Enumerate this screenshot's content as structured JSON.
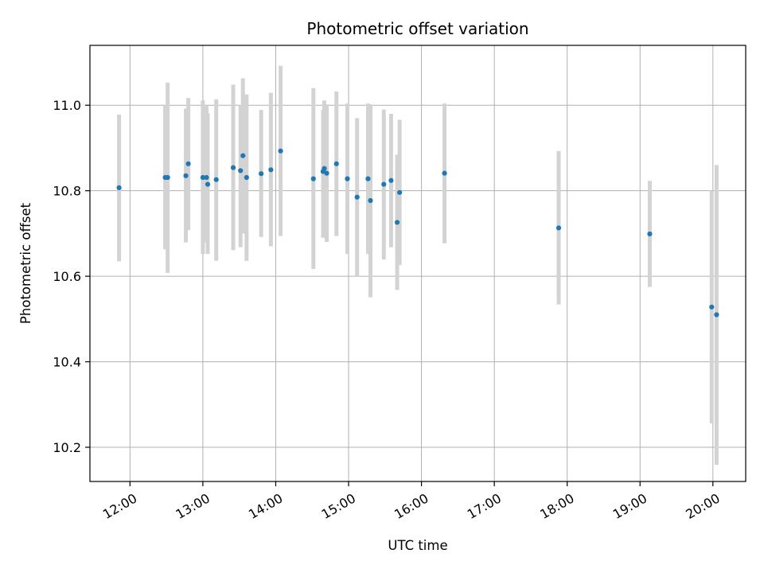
{
  "chart_data": {
    "type": "scatter",
    "title": "Photometric offset variation",
    "xlabel": "UTC time",
    "ylabel": "Photometric offset",
    "x_axis_kind": "time_of_day",
    "x_range": [
      "11:27",
      "20:27"
    ],
    "ylim": [
      10.12,
      11.14
    ],
    "x_ticks": [
      "12:00",
      "13:00",
      "14:00",
      "15:00",
      "16:00",
      "17:00",
      "18:00",
      "19:00",
      "20:00"
    ],
    "y_ticks": [
      10.2,
      10.4,
      10.6,
      10.8,
      11.0
    ],
    "y_tick_labels": [
      "10.2",
      "10.4",
      "10.6",
      "10.8",
      "11.0"
    ],
    "grid": true,
    "point_color": "#1f77b4",
    "errorbar_color": "#d3d3d3",
    "points": [
      {
        "x": "11:51",
        "y": 10.807,
        "ylow": 10.635,
        "yhigh": 10.978
      },
      {
        "x": "12:29",
        "y": 10.831,
        "ylow": 10.663,
        "yhigh": 11.0
      },
      {
        "x": "12:31",
        "y": 10.831,
        "ylow": 10.608,
        "yhigh": 11.053
      },
      {
        "x": "12:46",
        "y": 10.835,
        "ylow": 10.679,
        "yhigh": 10.992
      },
      {
        "x": "12:48",
        "y": 10.863,
        "ylow": 10.708,
        "yhigh": 11.017
      },
      {
        "x": "13:00",
        "y": 10.831,
        "ylow": 10.652,
        "yhigh": 11.011
      },
      {
        "x": "13:03",
        "y": 10.831,
        "ylow": 10.679,
        "yhigh": 11.0
      },
      {
        "x": "13:04",
        "y": 10.815,
        "ylow": 10.652,
        "yhigh": 10.981
      },
      {
        "x": "13:11",
        "y": 10.826,
        "ylow": 10.636,
        "yhigh": 11.014
      },
      {
        "x": "13:25",
        "y": 10.854,
        "ylow": 10.661,
        "yhigh": 11.048
      },
      {
        "x": "13:31",
        "y": 10.847,
        "ylow": 10.668,
        "yhigh": 11.0
      },
      {
        "x": "13:33",
        "y": 10.882,
        "ylow": 10.7,
        "yhigh": 11.063
      },
      {
        "x": "13:36",
        "y": 10.831,
        "ylow": 10.636,
        "yhigh": 11.025
      },
      {
        "x": "13:48",
        "y": 10.84,
        "ylow": 10.692,
        "yhigh": 10.989
      },
      {
        "x": "13:56",
        "y": 10.849,
        "ylow": 10.67,
        "yhigh": 11.029
      },
      {
        "x": "14:04",
        "y": 10.893,
        "ylow": 10.694,
        "yhigh": 11.092
      },
      {
        "x": "14:31",
        "y": 10.828,
        "ylow": 10.617,
        "yhigh": 11.04
      },
      {
        "x": "14:39",
        "y": 10.845,
        "ylow": 10.69,
        "yhigh": 10.989
      },
      {
        "x": "14:40",
        "y": 10.852,
        "ylow": 10.692,
        "yhigh": 11.011
      },
      {
        "x": "14:42",
        "y": 10.841,
        "ylow": 10.68,
        "yhigh": 11.002
      },
      {
        "x": "14:50",
        "y": 10.863,
        "ylow": 10.694,
        "yhigh": 11.032
      },
      {
        "x": "14:59",
        "y": 10.828,
        "ylow": 10.652,
        "yhigh": 11.004
      },
      {
        "x": "15:07",
        "y": 10.785,
        "ylow": 10.6,
        "yhigh": 10.97
      },
      {
        "x": "15:16",
        "y": 10.828,
        "ylow": 10.652,
        "yhigh": 11.004
      },
      {
        "x": "15:18",
        "y": 10.777,
        "ylow": 10.551,
        "yhigh": 11.002
      },
      {
        "x": "15:29",
        "y": 10.815,
        "ylow": 10.639,
        "yhigh": 10.99
      },
      {
        "x": "15:35",
        "y": 10.824,
        "ylow": 10.668,
        "yhigh": 10.98
      },
      {
        "x": "15:40",
        "y": 10.726,
        "ylow": 10.568,
        "yhigh": 10.884
      },
      {
        "x": "15:42",
        "y": 10.796,
        "ylow": 10.626,
        "yhigh": 10.966
      },
      {
        "x": "16:19",
        "y": 10.841,
        "ylow": 10.677,
        "yhigh": 11.004
      },
      {
        "x": "17:53",
        "y": 10.713,
        "ylow": 10.534,
        "yhigh": 10.893
      },
      {
        "x": "19:08",
        "y": 10.699,
        "ylow": 10.575,
        "yhigh": 10.823
      },
      {
        "x": "19:59",
        "y": 10.528,
        "ylow": 10.256,
        "yhigh": 10.8
      },
      {
        "x": "20:03",
        "y": 10.51,
        "ylow": 10.159,
        "yhigh": 10.86
      }
    ]
  }
}
